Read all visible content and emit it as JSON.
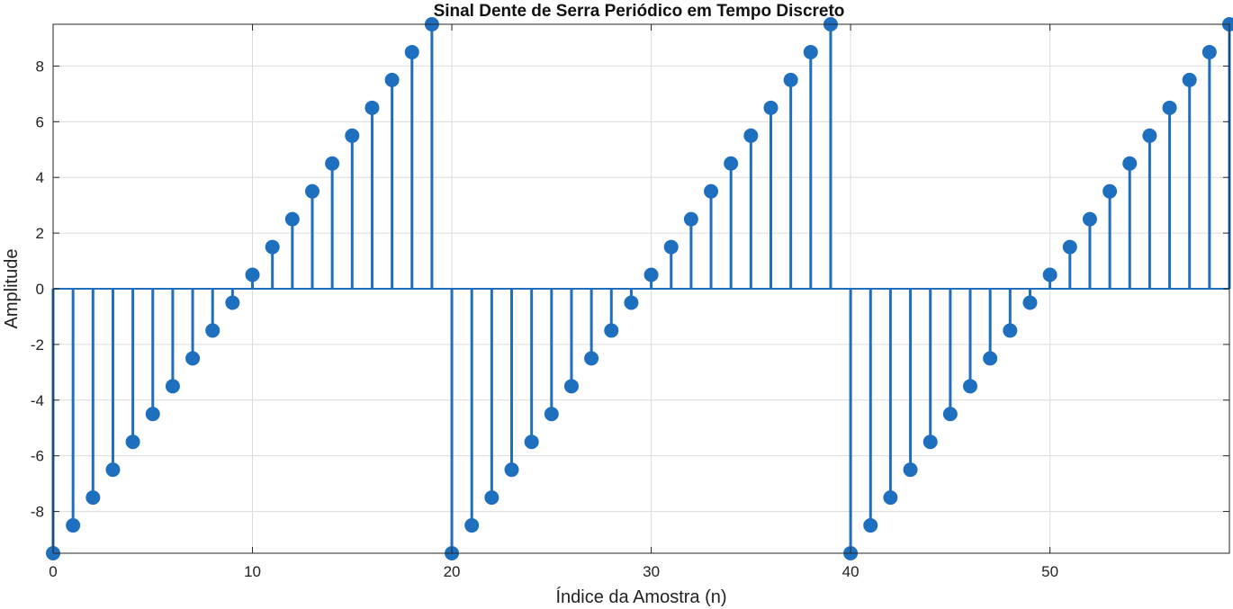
{
  "chart_data": {
    "type": "stem",
    "title": "Sinal Dente de Serra Periódico em Tempo Discreto",
    "xlabel": "Índice da Amostra (n)",
    "ylabel": "Amplitude",
    "xlim": [
      0,
      59
    ],
    "ylim": [
      -9.5,
      9.5
    ],
    "xticks": [
      0,
      10,
      20,
      30,
      40,
      50
    ],
    "yticks": [
      -8,
      -6,
      -4,
      -2,
      0,
      2,
      4,
      6,
      8
    ],
    "grid": true,
    "x": [
      0,
      1,
      2,
      3,
      4,
      5,
      6,
      7,
      8,
      9,
      10,
      11,
      12,
      13,
      14,
      15,
      16,
      17,
      18,
      19,
      20,
      21,
      22,
      23,
      24,
      25,
      26,
      27,
      28,
      29,
      30,
      31,
      32,
      33,
      34,
      35,
      36,
      37,
      38,
      39,
      40,
      41,
      42,
      43,
      44,
      45,
      46,
      47,
      48,
      49,
      50,
      51,
      52,
      53,
      54,
      55,
      56,
      57,
      58,
      59
    ],
    "values": [
      -9.5,
      -8.5,
      -7.5,
      -6.5,
      -5.5,
      -4.5,
      -3.5,
      -2.5,
      -1.5,
      -0.5,
      0.5,
      1.5,
      2.5,
      3.5,
      4.5,
      5.5,
      6.5,
      7.5,
      8.5,
      9.5,
      -9.5,
      -8.5,
      -7.5,
      -6.5,
      -5.5,
      -4.5,
      -3.5,
      -2.5,
      -1.5,
      -0.5,
      0.5,
      1.5,
      2.5,
      3.5,
      4.5,
      5.5,
      6.5,
      7.5,
      8.5,
      9.5,
      -9.5,
      -8.5,
      -7.5,
      -6.5,
      -5.5,
      -4.5,
      -3.5,
      -2.5,
      -1.5,
      -0.5,
      0.5,
      1.5,
      2.5,
      3.5,
      4.5,
      5.5,
      6.5,
      7.5,
      8.5,
      9.5
    ],
    "color": "#1f6fbf"
  }
}
